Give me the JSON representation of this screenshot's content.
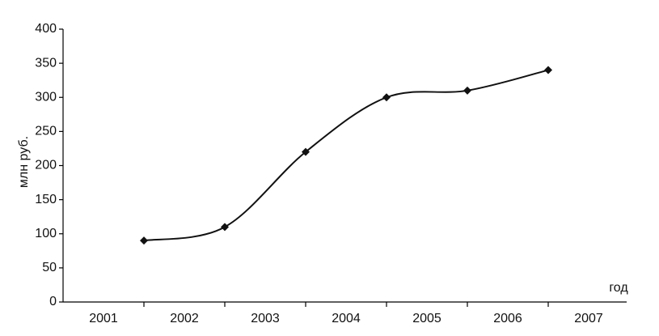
{
  "chart_data": {
    "type": "line",
    "y_label": "млн руб.",
    "x_label": "год",
    "categories": [
      "2001",
      "2002",
      "2003",
      "2004",
      "2005",
      "2006",
      "2007"
    ],
    "values": [
      90,
      110,
      220,
      300,
      310,
      340,
      null
    ],
    "color": "#111111",
    "ylim": [
      0,
      400
    ],
    "yticks": [
      0,
      50,
      100,
      150,
      200,
      250,
      300,
      350,
      400
    ],
    "smooth": true,
    "marker": "diamond"
  }
}
